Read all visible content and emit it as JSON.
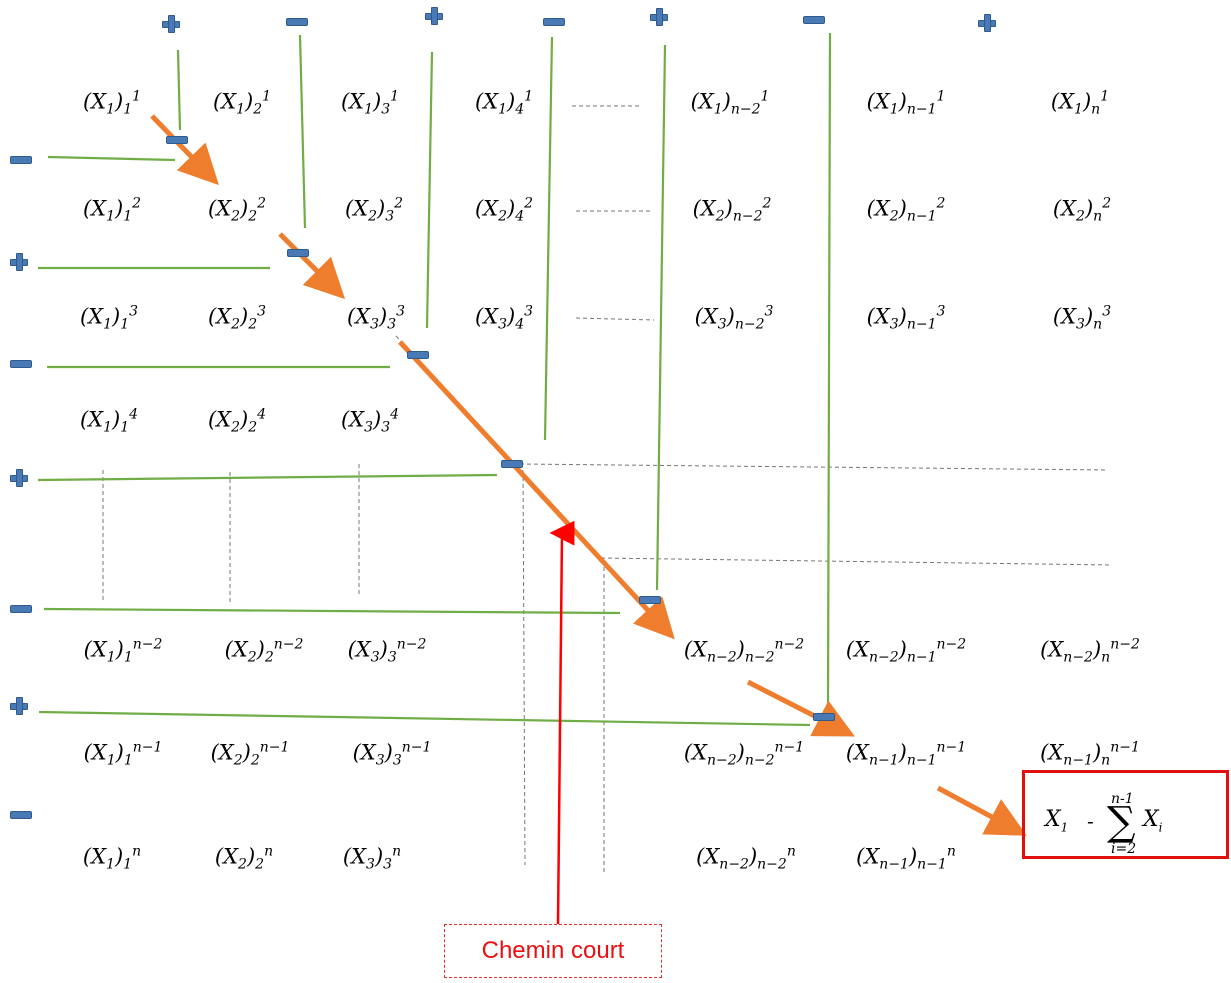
{
  "callout": {
    "label": "Chemin court"
  },
  "result": {
    "first_index": "1",
    "operator": "-",
    "sum_upper": "n-1",
    "sum_lower": "i=2",
    "summand_index": "i"
  },
  "matrix": {
    "rows": [
      [
        "(X₁)₁¹",
        "(X₁)₂¹",
        "(X₁)₃¹",
        "(X₁)₄¹",
        "(X₁)ₙ₋₂¹",
        "(X₁)ₙ₋₁¹",
        "(X₁)ₙ¹"
      ],
      [
        "(X₁)₁²",
        "(X₂)₂²",
        "(X₂)₃²",
        "(X₂)₄²",
        "(X₂)ₙ₋₂²",
        "(X₂)ₙ₋₁²",
        "(X₂)ₙ²"
      ],
      [
        "(X₁)₁³",
        "(X₂)₂³",
        "(X₃)₃³",
        "(X₃)₄³",
        "(X₃)ₙ₋₂³",
        "(X₃)ₙ₋₁³",
        "(X₃)ₙ³"
      ],
      [
        "(X₁)₁⁴",
        "(X₂)₂⁴",
        "(X₃)₃⁴"
      ],
      [
        "(X₁)₁ⁿ⁻²",
        "(X₂)₂ⁿ⁻²",
        "(X₃)₃ⁿ⁻²",
        "(Xₙ₋₂)ₙ₋₂ⁿ⁻²",
        "(Xₙ₋₂)ₙ₋₁ⁿ⁻²",
        "(Xₙ₋₂)ₙⁿ⁻²"
      ],
      [
        "(X₁)₁ⁿ⁻¹",
        "(X₂)₂ⁿ⁻¹",
        "(X₃)₃ⁿ⁻¹",
        "(Xₙ₋₂)ₙ₋₂ⁿ⁻¹",
        "(Xₙ₋₁)ₙ₋₁ⁿ⁻¹",
        "(Xₙ₋₁)ₙⁿ⁻¹"
      ],
      [
        "(X₁)₁ⁿ",
        "(X₂)₂ⁿ",
        "(X₃)₃ⁿ",
        "(Xₙ₋₂)ₙ₋₂ⁿ",
        "(Xₙ₋₁)ₙ₋₁ⁿ"
      ]
    ]
  },
  "signs": {
    "top": [
      "+",
      "−",
      "+",
      "−",
      "+",
      "−",
      "+"
    ],
    "left": [
      "−",
      "+",
      "−",
      "+",
      "−",
      "+",
      "−"
    ],
    "diagonal": [
      "−",
      "−",
      "−",
      "−",
      "−",
      "−"
    ]
  },
  "colors": {
    "sign_fill": "#4a7ab5",
    "green_line": "#70ad47",
    "orange_arrow": "#ee7d2e",
    "red_accent": "#e81010"
  }
}
